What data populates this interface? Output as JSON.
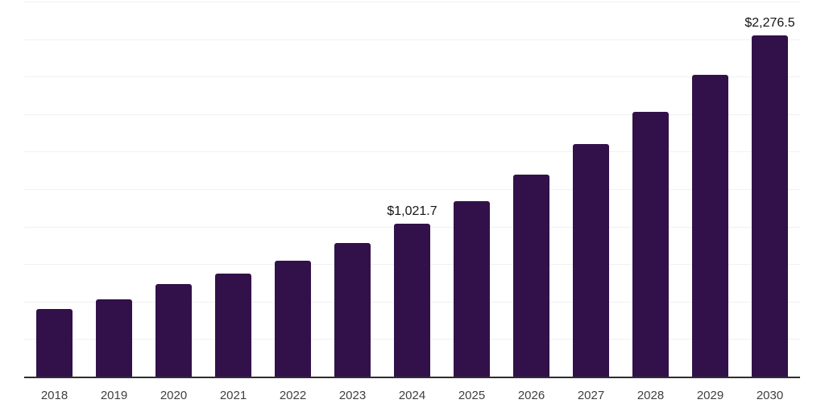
{
  "chart_data": {
    "type": "bar",
    "title": "",
    "xlabel": "",
    "ylabel": "",
    "categories": [
      "2018",
      "2019",
      "2020",
      "2021",
      "2022",
      "2023",
      "2024",
      "2025",
      "2026",
      "2027",
      "2028",
      "2029",
      "2030"
    ],
    "values": [
      450,
      514,
      616,
      685,
      771,
      888,
      1021.7,
      1167,
      1349,
      1552,
      1766,
      2013,
      2276.5
    ],
    "data_labels": [
      null,
      null,
      null,
      null,
      null,
      null,
      "$1,021.7",
      null,
      null,
      null,
      null,
      null,
      "$2,276.5"
    ],
    "ylim": [
      0,
      2500
    ],
    "gridline_step": 250,
    "grid": true,
    "legend": false,
    "colors": {
      "bar": "#32114a",
      "axis_line": "#2e2e33",
      "gridline": "#f1f1f1",
      "data_label_text": "#141414",
      "tick_label_text": "#3f3f3f",
      "background": "#ffffff"
    }
  }
}
